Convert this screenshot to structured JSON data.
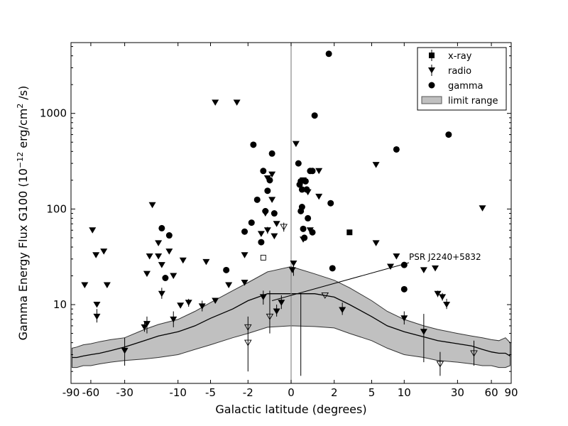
{
  "chart_data": {
    "type": "scatter",
    "title": "",
    "xlabel": "Galactic latitude (degrees)",
    "ylabel": "Gamma Energy Flux G100 (10",
    "ylabel_sup": "−12",
    "ylabel_mid": " erg/cm",
    "ylabel_sup2": "2",
    "ylabel_end": " /s)",
    "xscale": "arcsinh (compressed near 0)",
    "yscale": "log",
    "xlim": [
      -90,
      90
    ],
    "ylim": [
      1.5,
      5500
    ],
    "xticks": [
      -90,
      -60,
      -30,
      -10,
      -5,
      -2,
      0,
      2,
      5,
      10,
      30,
      60,
      90
    ],
    "xtick_labels": [
      "-90",
      "-60",
      "-30",
      "-10",
      "-5",
      "-2",
      "0",
      "2",
      "5",
      "10",
      "30",
      "60",
      "90"
    ],
    "ytick_labels": [
      "10",
      "100",
      "1000"
    ],
    "yticks": [
      10,
      100,
      1000
    ],
    "legend": {
      "position": "top-right",
      "entries": [
        "x-ray",
        "radio",
        "gamma",
        "limit range"
      ]
    },
    "annotation": {
      "text": "PSR J2240+5832",
      "x": -0.8,
      "y": 11
    },
    "colors": {
      "limit_band": "#c0c0c0",
      "markers": "#000000",
      "vline": "#888888"
    },
    "limit_range": {
      "x": [
        -88,
        -80,
        -70,
        -60,
        -50,
        -40,
        -30,
        -20,
        -15,
        -10,
        -7,
        -5,
        -3,
        -2,
        -1,
        0,
        1,
        2,
        3,
        5,
        7,
        10,
        15,
        20,
        30,
        40,
        50,
        60,
        70,
        80,
        88
      ],
      "lower": [
        2.2,
        2.2,
        2.3,
        2.3,
        2.4,
        2.5,
        2.6,
        2.7,
        2.8,
        3.0,
        3.4,
        3.8,
        4.5,
        5.0,
        5.8,
        6.0,
        5.9,
        5.7,
        5.0,
        4.2,
        3.5,
        3.0,
        2.8,
        2.6,
        2.5,
        2.4,
        2.3,
        2.3,
        2.2,
        2.2,
        2.3
      ],
      "upper": [
        3.5,
        3.6,
        3.8,
        3.9,
        4.1,
        4.3,
        4.5,
        5.5,
        6.2,
        7.0,
        8.5,
        10.5,
        14,
        17,
        22,
        25,
        21,
        18,
        15,
        11,
        8.5,
        7.0,
        6.0,
        5.5,
        5.0,
        4.7,
        4.5,
        4.3,
        4.2,
        4.5,
        4.0
      ],
      "median": [
        2.8,
        2.8,
        2.9,
        3.0,
        3.1,
        3.3,
        3.6,
        4.2,
        4.7,
        5.2,
        6.0,
        7.2,
        9.0,
        11,
        13,
        13,
        13,
        12,
        10,
        7.5,
        6.0,
        5.2,
        4.6,
        4.2,
        3.9,
        3.7,
        3.4,
        3.2,
        3.1,
        3.1,
        2.9
      ]
    },
    "series": [
      {
        "name": "gamma",
        "marker": "circle",
        "points": [
          {
            "x": 1.7,
            "y": 4200
          },
          {
            "x": 25,
            "y": 600
          },
          {
            "x": 1.0,
            "y": 950
          },
          {
            "x": -1.7,
            "y": 470
          },
          {
            "x": 8.5,
            "y": 420
          },
          {
            "x": -0.8,
            "y": 380
          },
          {
            "x": 0.3,
            "y": 300
          },
          {
            "x": 0.8,
            "y": 250
          },
          {
            "x": 0.9,
            "y": 250
          },
          {
            "x": -1.2,
            "y": 250
          },
          {
            "x": -0.9,
            "y": 200
          },
          {
            "x": 0.4,
            "y": 195
          },
          {
            "x": 0.6,
            "y": 195
          },
          {
            "x": 0.35,
            "y": 180
          },
          {
            "x": -1.0,
            "y": 155
          },
          {
            "x": 0.45,
            "y": 160
          },
          {
            "x": 0.65,
            "y": 160
          },
          {
            "x": -1.5,
            "y": 125
          },
          {
            "x": 1.8,
            "y": 115
          },
          {
            "x": 0.45,
            "y": 105
          },
          {
            "x": -1.1,
            "y": 95
          },
          {
            "x": -0.7,
            "y": 90
          },
          {
            "x": 0.4,
            "y": 95
          },
          {
            "x": 0.7,
            "y": 80
          },
          {
            "x": -1.8,
            "y": 72
          },
          {
            "x": -14,
            "y": 63
          },
          {
            "x": 0.5,
            "y": 62
          },
          {
            "x": -2.2,
            "y": 58
          },
          {
            "x": 0.9,
            "y": 57
          },
          {
            "x": -12,
            "y": 53
          },
          {
            "x": -1.3,
            "y": 45
          },
          {
            "x": 0.55,
            "y": 50
          },
          {
            "x": -3.5,
            "y": 23
          },
          {
            "x": 1.9,
            "y": 24
          },
          {
            "x": 10,
            "y": 26
          },
          {
            "x": -13,
            "y": 19
          },
          {
            "x": 10,
            "y": 14.5
          }
        ]
      },
      {
        "name": "radio",
        "marker": "triangle-down",
        "points": [
          {
            "x": -4.5,
            "y": 1300
          },
          {
            "x": -2.7,
            "y": 1300
          },
          {
            "x": 0.2,
            "y": 480
          },
          {
            "x": 5.5,
            "y": 290
          },
          {
            "x": -0.8,
            "y": 230
          },
          {
            "x": 1.2,
            "y": 250
          },
          {
            "x": -1.0,
            "y": 210
          },
          {
            "x": 0.5,
            "y": 200
          },
          {
            "x": 0.7,
            "y": 150
          },
          {
            "x": 1.2,
            "y": 135
          },
          {
            "x": -0.8,
            "y": 125
          },
          {
            "x": -17,
            "y": 110
          },
          {
            "x": 50,
            "y": 102
          },
          {
            "x": -1.1,
            "y": 90
          },
          {
            "x": -0.6,
            "y": 70
          },
          {
            "x": -58,
            "y": 60
          },
          {
            "x": -1.0,
            "y": 60
          },
          {
            "x": 0.8,
            "y": 60
          },
          {
            "x": -1.3,
            "y": 55
          },
          {
            "x": -0.7,
            "y": 52
          },
          {
            "x": 0.5,
            "y": 48
          },
          {
            "x": 5.5,
            "y": 44
          },
          {
            "x": -15,
            "y": 44
          },
          {
            "x": -46,
            "y": 36
          },
          {
            "x": -12,
            "y": 36
          },
          {
            "x": -54,
            "y": 33
          },
          {
            "x": -15,
            "y": 32
          },
          {
            "x": -18,
            "y": 32
          },
          {
            "x": 8.5,
            "y": 32
          },
          {
            "x": -2.2,
            "y": 33
          },
          {
            "x": -9,
            "y": 29
          },
          {
            "x": -5.5,
            "y": 28
          },
          {
            "x": -14,
            "y": 26
          },
          {
            "x": 0.1,
            "y": 27
          },
          {
            "x": 7.5,
            "y": 25
          },
          {
            "x": 15,
            "y": 23
          },
          {
            "x": 19,
            "y": 24
          },
          {
            "x": 0.05,
            "y": 23
          },
          {
            "x": -19,
            "y": 21
          },
          {
            "x": -11,
            "y": 20
          },
          {
            "x": -43,
            "y": 16
          },
          {
            "x": -68,
            "y": 16
          },
          {
            "x": -2.2,
            "y": 17
          },
          {
            "x": -3.3,
            "y": 16
          },
          {
            "x": -14,
            "y": 13
          },
          {
            "x": 20,
            "y": 13
          },
          {
            "x": 22,
            "y": 12
          },
          {
            "x": -1.2,
            "y": 12
          },
          {
            "x": -4.5,
            "y": 11
          },
          {
            "x": -8,
            "y": 10.5
          },
          {
            "x": -9.5,
            "y": 9.8
          },
          {
            "x": -6,
            "y": 9.6
          },
          {
            "x": -53,
            "y": 10
          },
          {
            "x": 24,
            "y": 10
          },
          {
            "x": -0.4,
            "y": 10.5
          },
          {
            "x": -0.6,
            "y": 8.5
          },
          {
            "x": 2.5,
            "y": 8.8
          },
          {
            "x": -53,
            "y": 7.5
          },
          {
            "x": 10,
            "y": 7.2
          },
          {
            "x": -11,
            "y": 7
          },
          {
            "x": -19,
            "y": 6.3
          },
          {
            "x": -20,
            "y": 5.8
          },
          {
            "x": 15,
            "y": 5.2
          },
          {
            "x": -30,
            "y": 3.3
          }
        ]
      },
      {
        "name": "x-ray",
        "marker": "square",
        "points": [
          {
            "x": 3.0,
            "y": 57
          }
        ]
      },
      {
        "name": "radio-limit",
        "marker": "triangle-down-open",
        "points": [
          {
            "x": -0.3,
            "y": 65
          },
          {
            "x": -2.0,
            "y": 5.8
          },
          {
            "x": -2.0,
            "y": 4.0
          },
          {
            "x": 1.5,
            "y": 12.5
          },
          {
            "x": 21,
            "y": 2.4
          },
          {
            "x": 42,
            "y": 3.1
          },
          {
            "x": -0.9,
            "y": 7.5
          }
        ]
      },
      {
        "name": "x-ray-limit",
        "marker": "square-open",
        "points": [
          {
            "x": -1.2,
            "y": 31
          }
        ]
      }
    ],
    "error_bars": [
      {
        "x": -30,
        "y0": 2.3,
        "y1": 4.5
      },
      {
        "x": -19,
        "y0": 5.0,
        "y1": 7.5
      },
      {
        "x": -11,
        "y0": 5.8,
        "y1": 8.5
      },
      {
        "x": -14,
        "y0": 11.5,
        "y1": 15
      },
      {
        "x": -8,
        "y0": 9.5,
        "y1": 11.5
      },
      {
        "x": -6,
        "y0": 8.5,
        "y1": 11
      },
      {
        "x": -53,
        "y0": 6.5,
        "y1": 9
      },
      {
        "x": 10,
        "y0": 6.2,
        "y1": 8.5
      },
      {
        "x": 15,
        "y0": 2.5,
        "y1": 8
      },
      {
        "x": 21,
        "y0": 1.8,
        "y1": 3.2
      },
      {
        "x": 42,
        "y0": 2.3,
        "y1": 4.2
      },
      {
        "x": 2.5,
        "y0": 7.8,
        "y1": 10.5
      },
      {
        "x": -0.6,
        "y0": 7.5,
        "y1": 10
      },
      {
        "x": -1.2,
        "y0": 10,
        "y1": 14
      },
      {
        "x": -2.0,
        "y0": 2.0,
        "y1": 7.5
      },
      {
        "x": -0.9,
        "y0": 5.0,
        "y1": 14
      },
      {
        "x": 0.4,
        "y0": 1.8,
        "y1": 13
      },
      {
        "x": -0.4,
        "y0": 9.0,
        "y1": 12.5
      },
      {
        "x": 0.1,
        "y0": 20,
        "y1": 28
      },
      {
        "x": -0.3,
        "y0": 58,
        "y1": 72
      },
      {
        "x": -1.0,
        "y0": 55,
        "y1": 65
      },
      {
        "x": 24,
        "y0": 9.0,
        "y1": 11.5
      },
      {
        "x": 20,
        "y0": 12,
        "y1": 14
      },
      {
        "x": 22,
        "y0": 11,
        "y1": 13.2
      },
      {
        "x": -20,
        "y0": 5.2,
        "y1": 6.5
      }
    ]
  }
}
